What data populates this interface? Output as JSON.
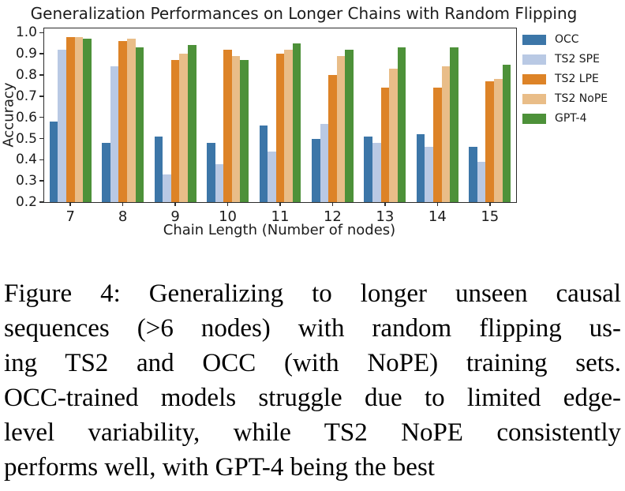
{
  "chart_data": {
    "type": "bar",
    "title": "Generalization Performances on Longer Chains with Random Flipping",
    "xlabel": "Chain Length (Number of nodes)",
    "ylabel": "Accuracy",
    "categories": [
      "7",
      "8",
      "9",
      "10",
      "11",
      "12",
      "13",
      "14",
      "15"
    ],
    "series": [
      {
        "name": "OCC",
        "color": "#3c76a8",
        "values": [
          0.58,
          0.48,
          0.51,
          0.48,
          0.56,
          0.5,
          0.51,
          0.52,
          0.46
        ]
      },
      {
        "name": "TS2 SPE",
        "color": "#b9c9e4",
        "values": [
          0.92,
          0.84,
          0.33,
          0.38,
          0.44,
          0.57,
          0.48,
          0.46,
          0.39
        ]
      },
      {
        "name": "TS2 LPE",
        "color": "#dd8327",
        "values": [
          0.98,
          0.96,
          0.87,
          0.92,
          0.9,
          0.8,
          0.74,
          0.74,
          0.77
        ]
      },
      {
        "name": "TS2 NoPE",
        "color": "#e9bd88",
        "values": [
          0.98,
          0.97,
          0.9,
          0.89,
          0.92,
          0.89,
          0.83,
          0.84,
          0.78
        ]
      },
      {
        "name": "GPT-4",
        "color": "#4d9139",
        "values": [
          0.97,
          0.93,
          0.94,
          0.87,
          0.95,
          0.92,
          0.93,
          0.93,
          0.85
        ]
      }
    ],
    "ylim": [
      0.2,
      1.02
    ],
    "yticks": [
      0.2,
      0.3,
      0.4,
      0.5,
      0.6,
      0.7,
      0.8,
      0.9,
      1.0
    ],
    "legend_position": "right",
    "grid": false,
    "spine_color": "#2b2b2b"
  },
  "caption": {
    "label": "Figure 4:",
    "lines": [
      "Figure 4: Generalizing to longer unseen causal",
      "sequences (>6 nodes) with random flipping us-",
      "ing TS2 and OCC (with NoPE) training sets.",
      "OCC-trained models struggle due to limited edge-",
      "level variability, while TS2 NoPE consistently",
      "performs well, with GPT-4 being the best"
    ]
  }
}
